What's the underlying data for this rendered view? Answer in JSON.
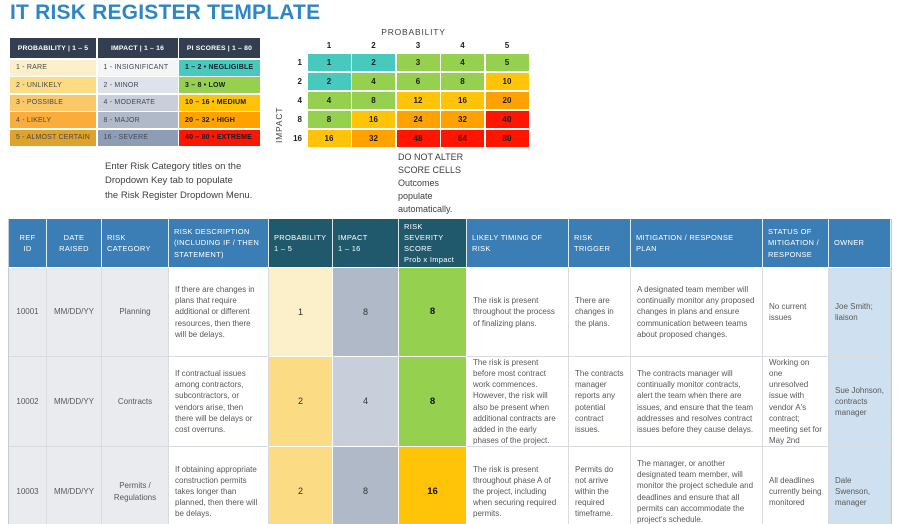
{
  "title": "IT RISK REGISTER TEMPLATE",
  "colors": {
    "ui": {
      "title": "#2E86C5",
      "header_blue": "#3B7DB5",
      "header_dark": "#20586C",
      "legend_header": "#333F50",
      "owner_bg": "#CFE1F0",
      "label_bg": "#E9EBEF",
      "grid_border": "#D8DBDF",
      "body_text": "#595959",
      "note_text": "#404040"
    },
    "levels": {
      "rare": "#FCF0CA",
      "unlikely": "#FBDC84",
      "possible": "#F9C869",
      "likely": "#FBAD3B",
      "almost_certain": "#DFA22B",
      "insignificant": "#F4F5F7",
      "minor": "#DEE2EA",
      "moderate": "#C9CFDA",
      "major": "#AFB9C8",
      "severe": "#8C9DB5",
      "negligible": "#47C9BD",
      "low": "#95D04F",
      "medium": "#FFC408",
      "high": "#FFA200",
      "extreme": "#FF1500"
    }
  },
  "legend": {
    "headers": [
      "PROBABILITY | 1 – 5",
      "IMPACT | 1 – 16",
      "PI SCORES | 1 – 80"
    ],
    "rows": [
      {
        "probability": "1 - RARE",
        "probability_level": "rare",
        "impact": "1 - INSIGNIFICANT",
        "impact_level": "insignificant",
        "score": "1 – 2 • NEGLIGIBLE",
        "score_level": "negligible"
      },
      {
        "probability": "2 - UNLIKELY",
        "probability_level": "unlikely",
        "impact": "2 - MINOR",
        "impact_level": "minor",
        "score": "3 – 8 • LOW",
        "score_level": "low"
      },
      {
        "probability": "3 - POSSIBLE",
        "probability_level": "possible",
        "impact": "4 - MODERATE",
        "impact_level": "moderate",
        "score": "10 – 16 • MEDIUM",
        "score_level": "medium"
      },
      {
        "probability": "4 - LIKELY",
        "probability_level": "likely",
        "impact": "8 - MAJOR",
        "impact_level": "major",
        "score": "20 – 32 • HIGH",
        "score_level": "high"
      },
      {
        "probability": "5 - ALMOST CERTAIN",
        "probability_level": "almost_certain",
        "impact": "16 - SEVERE",
        "impact_level": "severe",
        "score": "40 – 80 • EXTREME",
        "score_level": "extreme"
      }
    ]
  },
  "matrix": {
    "title": "PROBABILITY",
    "ylabel": "IMPACT",
    "col_headers": [
      "1",
      "2",
      "3",
      "4",
      "5"
    ],
    "row_headers": [
      "1",
      "2",
      "4",
      "8",
      "16"
    ],
    "values": [
      [
        1,
        2,
        3,
        4,
        5
      ],
      [
        2,
        4,
        6,
        8,
        10
      ],
      [
        4,
        8,
        12,
        16,
        20
      ],
      [
        8,
        16,
        24,
        32,
        40
      ],
      [
        16,
        32,
        48,
        64,
        80
      ]
    ],
    "levels": [
      [
        "negligible",
        "negligible",
        "low",
        "low",
        "low"
      ],
      [
        "negligible",
        "low",
        "low",
        "low",
        "medium"
      ],
      [
        "low",
        "low",
        "medium",
        "medium",
        "high"
      ],
      [
        "low",
        "medium",
        "high",
        "high",
        "extreme"
      ],
      [
        "medium",
        "high",
        "extreme",
        "extreme",
        "extreme"
      ]
    ]
  },
  "notes": {
    "dropdown": "Enter Risk Category titles on the\nDropdown Key tab to populate\nthe Risk Register Dropdown Menu.",
    "score": "DO NOT ALTER\nSCORE CELLS\nOutcomes\npopulate\nautomatically."
  },
  "table": {
    "columns": [
      {
        "key": "ref_id",
        "label": "REF\nID",
        "header_style": "blue",
        "body_style": "label",
        "align": "center",
        "header_align": "center"
      },
      {
        "key": "date_raised",
        "label": "DATE\nRAISED",
        "header_style": "blue",
        "body_style": "label",
        "align": "center",
        "header_align": "center"
      },
      {
        "key": "risk_category",
        "label": "RISK\nCATEGORY",
        "header_style": "blue",
        "body_style": "label",
        "align": "center"
      },
      {
        "key": "description",
        "label": "RISK DESCRIPTION\n(INCLUDING IF / THEN\nSTATEMENT)",
        "header_style": "blue",
        "body_style": "text",
        "align": "left"
      },
      {
        "key": "probability",
        "label": "PROBABILITY\n1 – 5",
        "header_style": "dark",
        "body_style": "level",
        "level_key": "probability_level",
        "align": "center"
      },
      {
        "key": "impact",
        "label": "IMPACT\n1 – 16",
        "header_style": "dark",
        "body_style": "level",
        "level_key": "impact_level",
        "align": "center"
      },
      {
        "key": "score",
        "label": "RISK SEVERITY\nSCORE\nProb x Impact",
        "header_style": "dark",
        "body_style": "level",
        "level_key": "score_level",
        "align": "center",
        "bold": true
      },
      {
        "key": "timing",
        "label": "LIKELY TIMING OF\nRISK",
        "header_style": "blue",
        "body_style": "text",
        "align": "left"
      },
      {
        "key": "trigger",
        "label": "RISK\nTRIGGER",
        "header_style": "blue",
        "body_style": "text",
        "align": "left"
      },
      {
        "key": "mitigation",
        "label": "MITIGATION / RESPONSE\nPLAN",
        "header_style": "blue",
        "body_style": "text",
        "align": "left"
      },
      {
        "key": "status",
        "label": "STATUS OF\nMITIGATION /\nRESPONSE",
        "header_style": "blue",
        "body_style": "text",
        "align": "left"
      },
      {
        "key": "owner",
        "label": "OWNER",
        "header_style": "blue",
        "body_style": "owner",
        "align": "left"
      }
    ],
    "rows": [
      {
        "ref_id": "10001",
        "date_raised": "MM/DD/YY",
        "risk_category": "Planning",
        "description": "If there are changes in plans that require additional or different resources, then there will be delays.",
        "probability": "1",
        "probability_level": "rare",
        "impact": "8",
        "impact_level": "major",
        "score": "8",
        "score_level": "low",
        "timing": "The risk is present throughout the process of finalizing plans.",
        "trigger": "There are changes in the plans.",
        "mitigation": "A designated team member will continually monitor any proposed changes in plans and ensure communication between teams about proposed changes.",
        "status": "No current issues",
        "owner": "Joe Smith; liaison"
      },
      {
        "ref_id": "10002",
        "date_raised": "MM/DD/YY",
        "risk_category": "Contracts",
        "description": "If contractual issues among contractors, subcontractors, or vendors arise, then there will be delays or cost overruns.",
        "probability": "2",
        "probability_level": "unlikely",
        "impact": "4",
        "impact_level": "moderate",
        "score": "8",
        "score_level": "low",
        "timing": "The risk is present before most contract work commences. However, the risk will also be present when additional contracts are added in the early phases of the project.",
        "trigger": "The contracts manager reports any potential contract issues.",
        "mitigation": "The contracts manager will continually monitor contracts, alert the team when there are issues, and ensure that the team addresses and resolves contract issues before they cause delays.",
        "status": "Working on one unresolved issue with vendor A's contract; meeting set for May 2nd",
        "owner": "Sue Johnson, contracts manager"
      },
      {
        "ref_id": "10003",
        "date_raised": "MM/DD/YY",
        "risk_category": "Permits / Regulations",
        "description": "If obtaining appropriate construction permits takes longer than planned, then there will be delays.",
        "probability": "2",
        "probability_level": "unlikely",
        "impact": "8",
        "impact_level": "major",
        "score": "16",
        "score_level": "medium",
        "timing": "The risk is present throughout phase A of the project, including when securing required permits.",
        "trigger": "Permits do not arrive within the required timeframe.",
        "mitigation": "The manager, or another designated team member, will monitor the project schedule and deadlines and ensure that all permits can accommodate the project's schedule.",
        "status": "All deadlines currently being monitored",
        "owner": "Dale Swenson, manager"
      }
    ]
  }
}
